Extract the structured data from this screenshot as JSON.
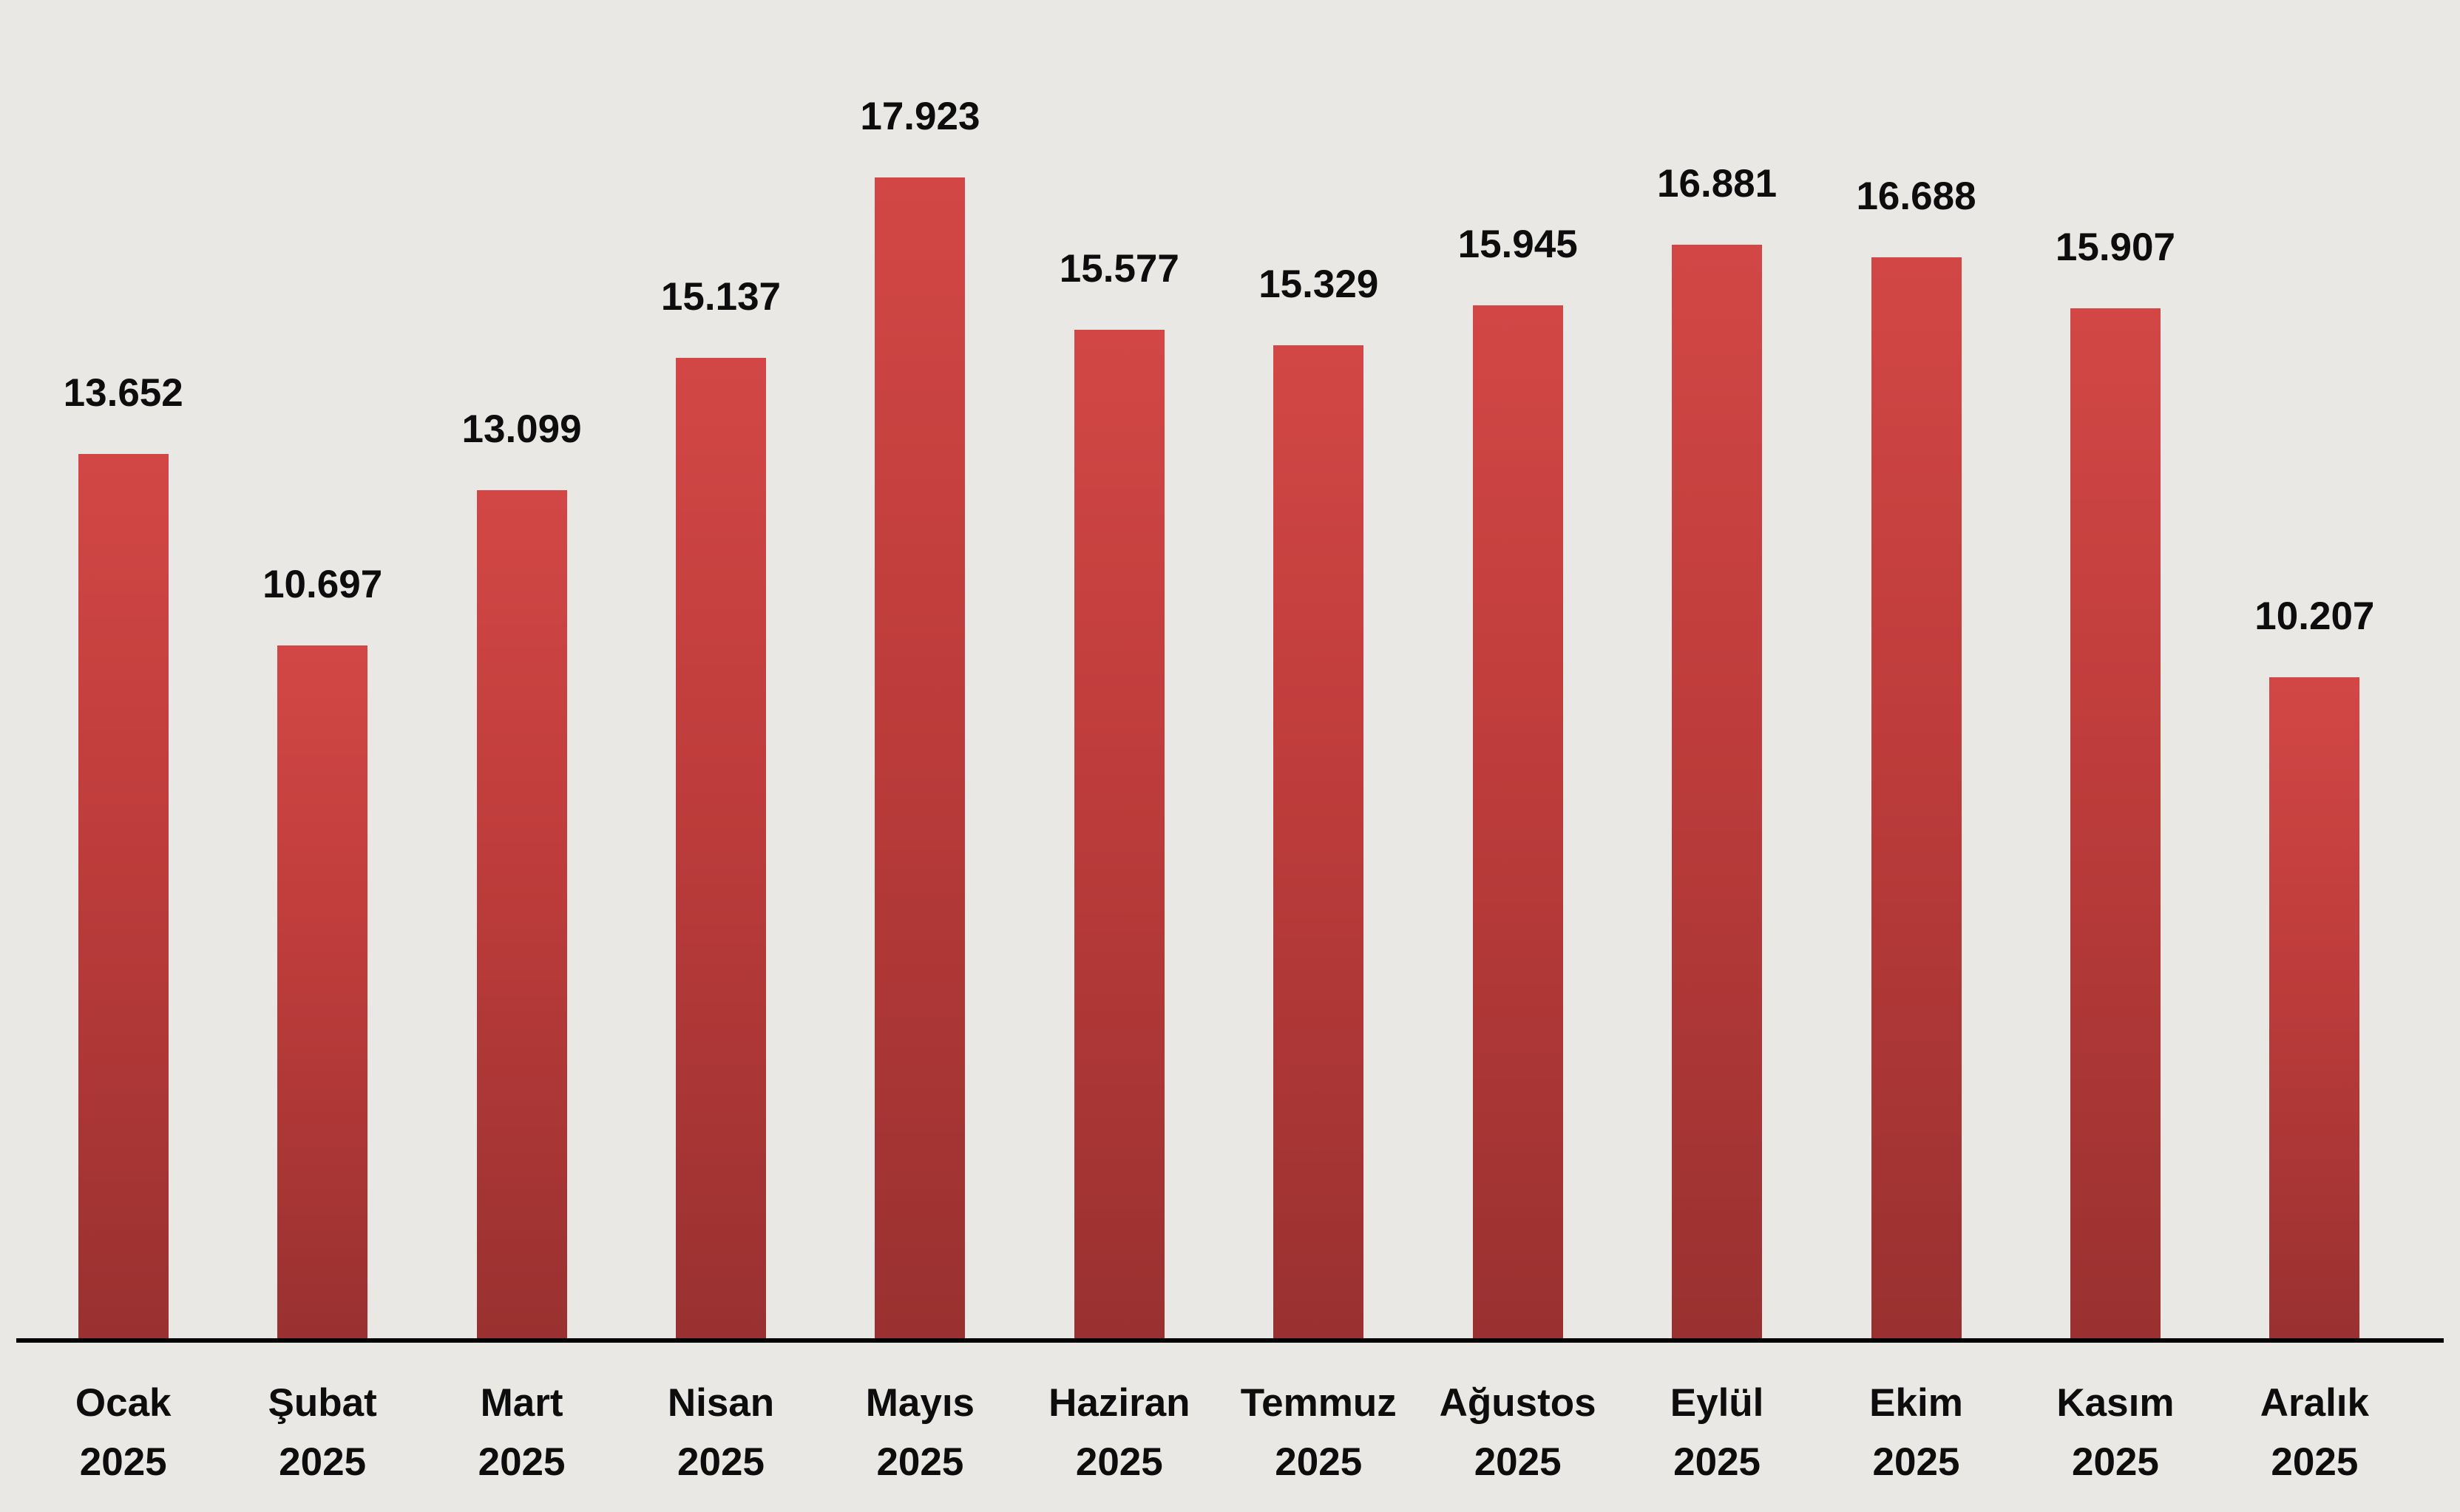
{
  "chart_data": {
    "type": "bar",
    "categories": [
      "Ocak 2025",
      "Şubat 2025",
      "Mart 2025",
      "Nisan 2025",
      "Mayıs 2025",
      "Haziran 2025",
      "Temmuz 2025",
      "Ağustos 2025",
      "Eylül 2025",
      "Ekim 2025",
      "Kasım 2025",
      "Aralık 2025"
    ],
    "category_months": [
      "Ocak",
      "Şubat",
      "Mart",
      "Nisan",
      "Mayıs",
      "Haziran",
      "Temmuz",
      "Ağustos",
      "Eylül",
      "Ekim",
      "Kasım",
      "Aralık"
    ],
    "category_year": "2025",
    "values": [
      13652,
      10697,
      13099,
      15137,
      17923,
      15577,
      15329,
      15945,
      16881,
      16688,
      15907,
      10207
    ],
    "value_labels": [
      "13.652",
      "10.697",
      "13.099",
      "15.137",
      "17.923",
      "15.577",
      "15.329",
      "15.945",
      "16.881",
      "16.688",
      "15.907",
      "10.207"
    ],
    "xlabel": "",
    "ylabel": "",
    "ylim": [
      0,
      18500
    ],
    "grid": false,
    "legend": "none",
    "colors": {
      "bar_gradient_top": "#d24746",
      "bar_gradient_mid": "#bd3c3b",
      "bar_gradient_bottom": "#993130",
      "background": "#e9e8e5",
      "axis_line": "#000000",
      "label_text": "#0d0d0d"
    }
  }
}
